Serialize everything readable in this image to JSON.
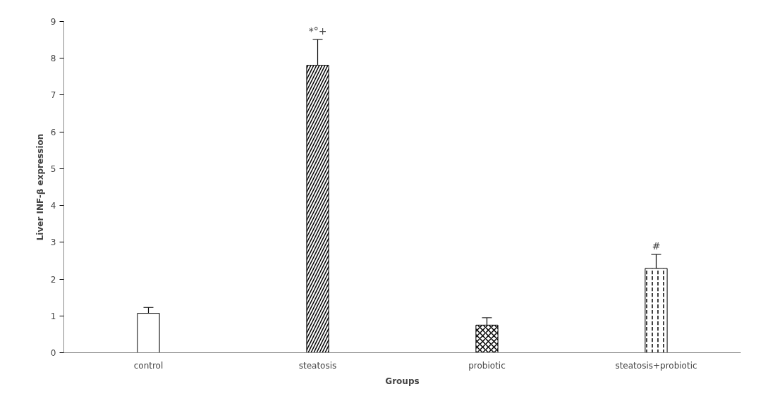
{
  "chart_data": {
    "type": "bar",
    "xlabel": "Groups",
    "ylabel": "Liver INF-β expression",
    "categories": [
      "control",
      "steatosis",
      "probiotic",
      "steatosis+probiotic"
    ],
    "values": [
      1.07,
      7.81,
      0.75,
      2.29
    ],
    "errors": [
      0.16,
      0.7,
      0.2,
      0.38
    ],
    "colors": [
      "#ffffff",
      "#ffffff",
      "#ffffff",
      "#ffffff"
    ],
    "ylim": [
      0,
      9
    ],
    "yticks": [
      0,
      1,
      2,
      3,
      4,
      5,
      6,
      7,
      8,
      9
    ],
    "grid": false,
    "annotations": [
      {
        "text": "*°+",
        "x": "steatosis",
        "y": 8.51
      },
      {
        "text": "#",
        "x": "steatosis+probiotic",
        "y": 2.67
      }
    ]
  }
}
